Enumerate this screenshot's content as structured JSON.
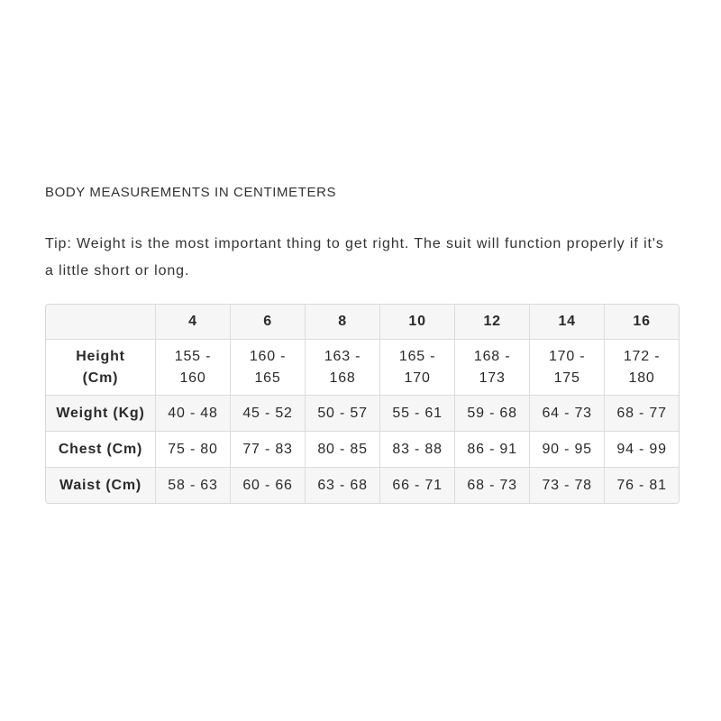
{
  "title": "BODY MEASUREMENTS IN CENTIMETERS",
  "tip": "Tip: Weight is the most important thing to get right. The suit will function properly if it's a little short or long.",
  "table": {
    "headers": [
      "",
      "4",
      "6",
      "8",
      "10",
      "12",
      "14",
      "16"
    ],
    "rows": [
      {
        "label": "Height (Cm)",
        "values": [
          "155 - 160",
          "160 - 165",
          "163 - 168",
          "165 - 170",
          "168 - 173",
          "170 - 175",
          "172 - 180"
        ]
      },
      {
        "label": "Weight (Kg)",
        "values": [
          "40 - 48",
          "45 - 52",
          "50 - 57",
          "55 - 61",
          "59 - 68",
          "64 - 73",
          "68 - 77"
        ]
      },
      {
        "label": "Chest (Cm)",
        "values": [
          "75 - 80",
          "77 - 83",
          "80 - 85",
          "83 - 88",
          "86 - 91",
          "90 - 95",
          "94 - 99"
        ]
      },
      {
        "label": "Waist (Cm)",
        "values": [
          "58 - 63",
          "60 - 66",
          "63 - 68",
          "66 - 71",
          "68 - 73",
          "73 - 78",
          "76 - 81"
        ]
      }
    ]
  }
}
